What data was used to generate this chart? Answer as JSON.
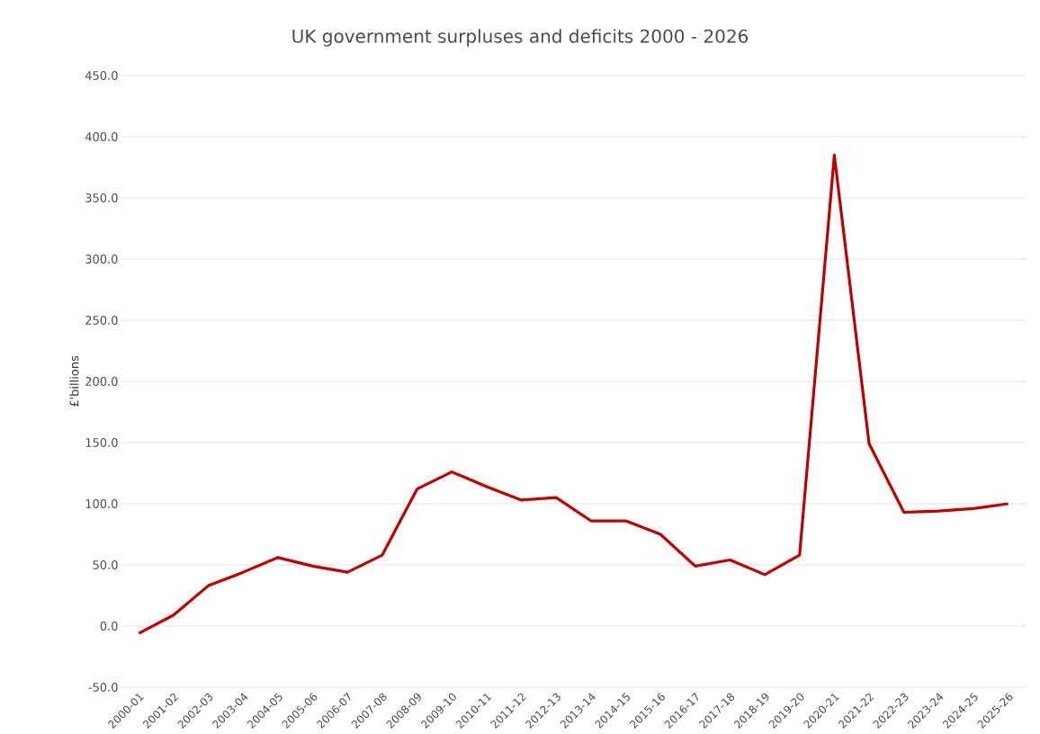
{
  "chart_data": {
    "type": "line",
    "title": "UK government surpluses and deficits 2000 - 2026",
    "ylabel": "£'billions",
    "categories": [
      "2000-01",
      "2001-02",
      "2002-03",
      "2003-04",
      "2004-05",
      "2005-06",
      "2006-07",
      "2007-08",
      "2008-09",
      "2009-10",
      "2010-11",
      "2011-12",
      "2012-13",
      "2013-14",
      "2014-15",
      "2015-16",
      "2016-17",
      "2017-18",
      "2018-19",
      "2019-20",
      "2020-21",
      "2021-22",
      "2022-23",
      "2023-24",
      "2024-25",
      "2025-26"
    ],
    "series": [
      {
        "color": "#c00000",
        "values": [
          -6,
          9,
          33,
          44,
          56,
          49,
          44,
          58,
          112,
          126,
          114,
          103,
          105,
          86,
          86,
          75,
          49,
          54,
          42,
          58,
          385,
          149,
          93,
          94,
          96,
          100
        ]
      }
    ],
    "ylim": [
      -50,
      450
    ],
    "yticks": [
      {
        "value": -50,
        "label": "-50.0"
      },
      {
        "value": 0,
        "label": "0.0"
      },
      {
        "value": 50,
        "label": "50.0"
      },
      {
        "value": 100,
        "label": "100.0"
      },
      {
        "value": 150,
        "label": "150.0"
      },
      {
        "value": 200,
        "label": "200.0"
      },
      {
        "value": 250,
        "label": "250.0"
      },
      {
        "value": 300,
        "label": "300.0"
      },
      {
        "value": 350,
        "label": "350.0"
      },
      {
        "value": 400,
        "label": "400.0"
      },
      {
        "value": 450,
        "label": "450.0"
      }
    ],
    "grid": "y",
    "marker": "none",
    "line_style": "solid"
  }
}
